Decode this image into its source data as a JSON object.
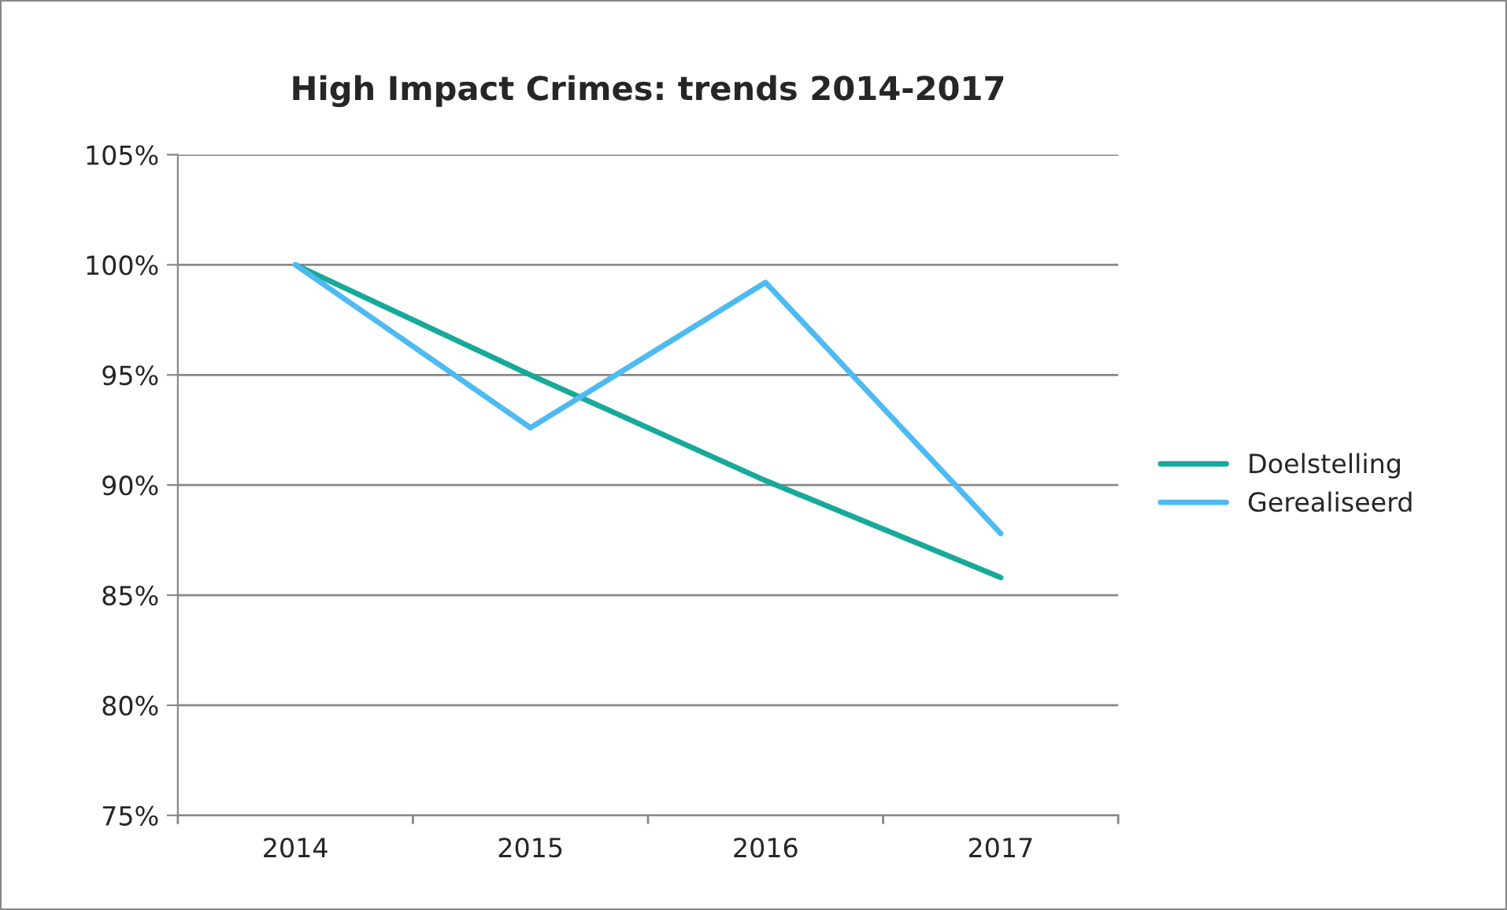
{
  "chart_data": {
    "type": "line",
    "title": "High Impact Crimes: trends 2014-2017",
    "categories": [
      "2014",
      "2015",
      "2016",
      "2017"
    ],
    "series": [
      {
        "name": "Doelstelling",
        "color": "#17a99a",
        "values": [
          100,
          95,
          90.2,
          85.8
        ]
      },
      {
        "name": "Gerealiseerd",
        "color": "#4dbaf2",
        "values": [
          100,
          92.6,
          99.2,
          87.8
        ]
      }
    ],
    "ylim": [
      75,
      105
    ],
    "yticks": [
      {
        "value": 75,
        "label": "75%"
      },
      {
        "value": 80,
        "label": "80%"
      },
      {
        "value": 85,
        "label": "85%"
      },
      {
        "value": 90,
        "label": "90%"
      },
      {
        "value": 95,
        "label": "95%"
      },
      {
        "value": 100,
        "label": "100%"
      },
      {
        "value": 105,
        "label": "105%"
      }
    ],
    "grid": "y",
    "legend": "right",
    "marker": "none",
    "line_style": "solid"
  }
}
